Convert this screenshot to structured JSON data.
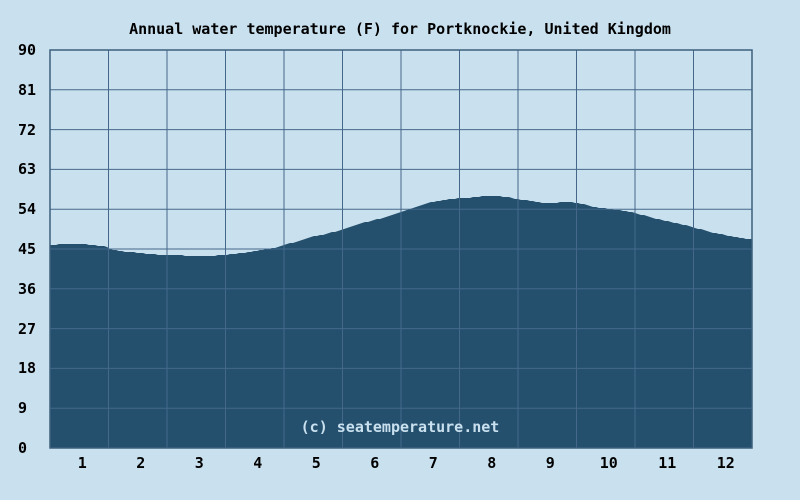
{
  "title": "Annual water temperature (F) for Portknockie, United Kingdom",
  "watermark": "(c) seatemperature.net",
  "colors": {
    "background": "#c9e0ee",
    "area_fill": "#24506e",
    "gridline": "#45688a",
    "plot_border": "#3d617f",
    "text": "#000000",
    "watermark_text": "#c9e0ee"
  },
  "chart_data": {
    "type": "area",
    "title": "Annual water temperature (F) for Portknockie, United Kingdom",
    "xlabel": "",
    "ylabel": "",
    "xlim": [
      0,
      12
    ],
    "ylim": [
      0,
      90
    ],
    "x_ticks": [
      1,
      2,
      3,
      4,
      5,
      6,
      7,
      8,
      9,
      10,
      11,
      12
    ],
    "y_ticks": [
      0,
      9,
      18,
      27,
      36,
      45,
      54,
      63,
      72,
      81,
      90
    ],
    "grid": true,
    "legend": false,
    "series": [
      {
        "name": "Water temperature (F)",
        "x": [
          0,
          0.2,
          0.55,
          0.8,
          0.98,
          1.02,
          1.3,
          1.6,
          2.0,
          2.4,
          2.8,
          3.0,
          3.3,
          3.6,
          3.85,
          4.0,
          4.3,
          4.5,
          4.75,
          5.0,
          5.25,
          5.5,
          5.75,
          6.0,
          6.25,
          6.5,
          6.75,
          7.0,
          7.2,
          7.45,
          7.65,
          7.85,
          8.0,
          8.2,
          8.5,
          8.8,
          9.0,
          9.3,
          9.6,
          10.0,
          10.3,
          10.6,
          11.0,
          11.3,
          11.6,
          11.85,
          12.0
        ],
        "values": [
          45.8,
          46.2,
          46.2,
          45.8,
          45.5,
          44.9,
          44.4,
          44.0,
          43.6,
          43.5,
          43.5,
          43.7,
          44.1,
          44.8,
          45.3,
          45.9,
          47.0,
          47.8,
          48.5,
          49.4,
          50.6,
          51.4,
          52.2,
          53.4,
          54.5,
          55.5,
          56.1,
          56.5,
          56.6,
          57.0,
          57.0,
          56.7,
          56.2,
          55.9,
          55.3,
          55.6,
          55.5,
          54.5,
          54.0,
          53.2,
          52.0,
          51.2,
          49.9,
          48.8,
          48.0,
          47.4,
          47.2
        ]
      }
    ]
  }
}
